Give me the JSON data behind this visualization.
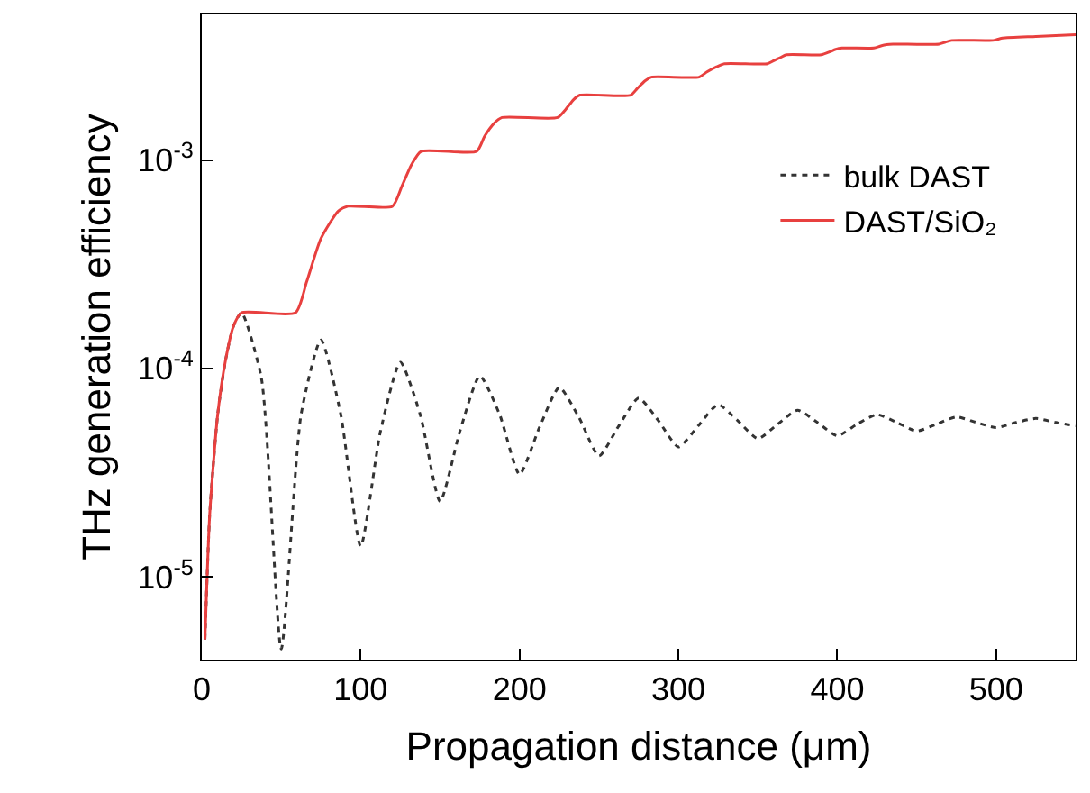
{
  "chart_data": {
    "type": "line",
    "xlabel": "Propagation distance (μm)",
    "ylabel": "THz generation efficiency",
    "log": "y",
    "grid": false,
    "legend": "top right",
    "marker": "none",
    "xlim": [
      0,
      550
    ],
    "xticks": [
      0,
      100,
      200,
      300,
      400,
      500
    ],
    "ylim": [
      4e-06,
      0.005
    ],
    "yticks": [
      {
        "value": 1e-05,
        "label": "10$^{-5}$"
      },
      {
        "value": 0.0001,
        "label": "10$^{-4}$"
      },
      {
        "value": 0.001,
        "label": "10$^{-3}$"
      }
    ],
    "series": [
      {
        "name": "bulk DAST",
        "color": "#333333",
        "line_style": "dotted",
        "x": [
          2,
          5,
          10,
          15,
          20,
          25,
          37.5,
          50,
          62.5,
          75,
          87.5,
          100,
          112.5,
          125,
          137.5,
          150,
          162.5,
          175,
          187.5,
          200,
          212.5,
          225,
          237.5,
          250,
          262.5,
          275,
          287.5,
          300,
          312.5,
          325,
          337.5,
          350,
          362.5,
          375,
          387.5,
          400,
          412.5,
          425,
          437.5,
          450,
          462.5,
          475,
          487.5,
          500,
          512.5,
          525,
          537.5,
          550
        ],
        "values": [
          5e-06,
          2e-05,
          6e-05,
          0.00011,
          0.00016,
          0.000185,
          9e-05,
          4.5e-06,
          6e-05,
          0.000137,
          6e-05,
          1.4e-05,
          5e-05,
          0.000107,
          6e-05,
          2.3e-05,
          5e-05,
          9.2e-05,
          6e-05,
          3.1e-05,
          5.2e-05,
          8.1e-05,
          5.8e-05,
          3.8e-05,
          5.3e-05,
          7.2e-05,
          5.6e-05,
          4.2e-05,
          5.3e-05,
          6.7e-05,
          5.6e-05,
          4.6e-05,
          5.4e-05,
          6.3e-05,
          5.5e-05,
          4.75e-05,
          5.4e-05,
          6e-05,
          5.5e-05,
          5e-05,
          5.4e-05,
          5.85e-05,
          5.5e-05,
          5.2e-05,
          5.5e-05,
          5.75e-05,
          5.5e-05,
          5.3e-05
        ]
      },
      {
        "name": "DAST/SiO₂",
        "color": "#e8403f",
        "line_style": "solid",
        "x": [
          2,
          5,
          10,
          15,
          20,
          25,
          59,
          66,
          75,
          86,
          92,
          120,
          126,
          132,
          138,
          173,
          178,
          184,
          189,
          224,
          229,
          234,
          238,
          270,
          274,
          279,
          283,
          313,
          318,
          324,
          329,
          356,
          360,
          364,
          368,
          390,
          395,
          399,
          403,
          423,
          427,
          431,
          435,
          464,
          468,
          472,
          498,
          501,
          504,
          525,
          550
        ],
        "values": [
          5e-06,
          2e-05,
          6e-05,
          0.00011,
          0.00016,
          0.000185,
          0.000185,
          0.00026,
          0.00042,
          0.00057,
          0.0006,
          0.0006,
          0.00075,
          0.00095,
          0.0011,
          0.0011,
          0.0013,
          0.0015,
          0.0016,
          0.0016,
          0.00175,
          0.00195,
          0.00205,
          0.00205,
          0.0022,
          0.0024,
          0.0025,
          0.0025,
          0.00265,
          0.0028,
          0.0029,
          0.0029,
          0.003,
          0.0031,
          0.0032,
          0.0032,
          0.0033,
          0.0034,
          0.00345,
          0.00345,
          0.00352,
          0.00358,
          0.0036,
          0.0036,
          0.00368,
          0.00375,
          0.00375,
          0.0038,
          0.00385,
          0.00392,
          0.004
        ]
      }
    ]
  }
}
